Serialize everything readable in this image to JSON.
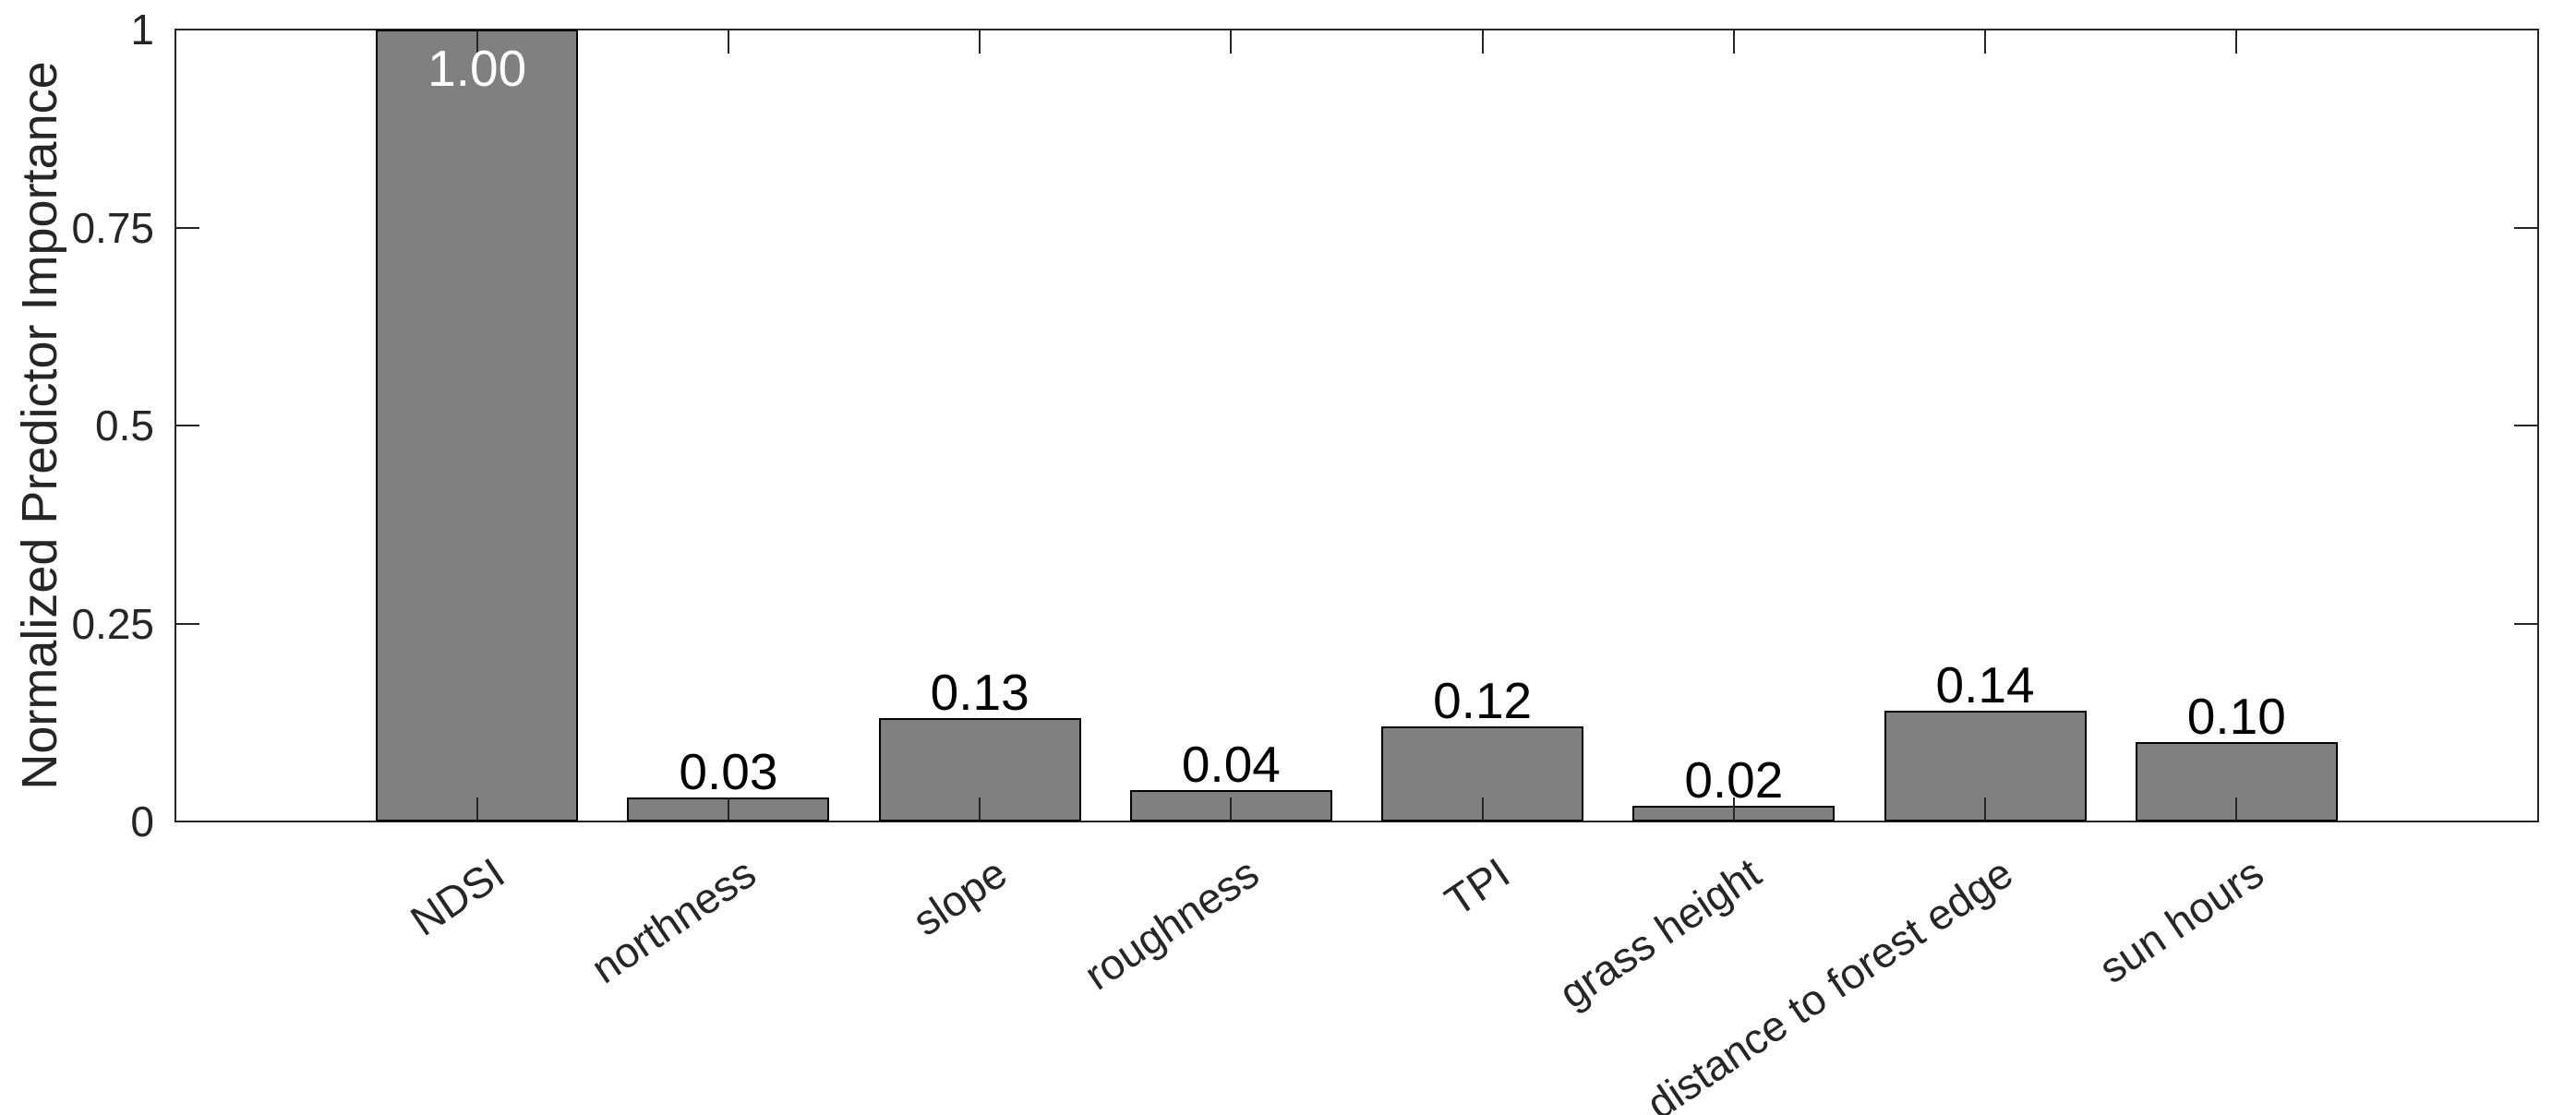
{
  "chart_data": {
    "type": "bar",
    "categories": [
      "NDSI",
      "northness",
      "slope",
      "roughness",
      "TPI",
      "grass height",
      "distance to forest edge",
      "sun hours"
    ],
    "values": [
      1.0,
      0.03,
      0.13,
      0.04,
      0.12,
      0.02,
      0.14,
      0.1
    ],
    "bar_labels": [
      "1.00",
      "0.03",
      "0.13",
      "0.04",
      "0.12",
      "0.02",
      "0.14",
      "0.10"
    ],
    "title": "",
    "xlabel": "",
    "ylabel": "Normalized Predictor Importance",
    "ylim": [
      0,
      1
    ],
    "xlim": [
      -0.2,
      9.2
    ],
    "yticks": [
      {
        "value": 0,
        "label": "0"
      },
      {
        "value": 0.25,
        "label": "0.25"
      },
      {
        "value": 0.5,
        "label": "0.5"
      },
      {
        "value": 0.75,
        "label": "0.75"
      },
      {
        "value": 1,
        "label": "1"
      }
    ],
    "bar_width_fraction": 0.8,
    "x_tick_label_rotation_deg": 34,
    "grid": false,
    "legend": null,
    "box": true,
    "tick_direction": "in",
    "bar_color": "#808080",
    "bar_edge_color": "#000000",
    "axis_color": "#262626",
    "value_label_color": "#000000",
    "first_bar_value_label_color": "#ffffff"
  }
}
